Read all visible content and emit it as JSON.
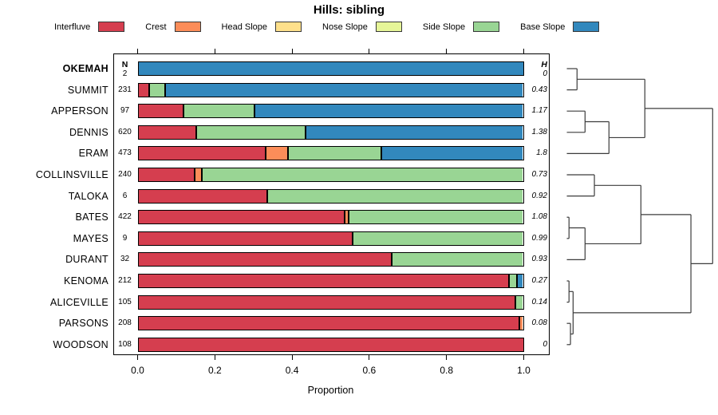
{
  "title": "Hills: sibling",
  "columns": {
    "n_header": "N",
    "h_header": "H"
  },
  "axis": {
    "xlabel": "Proportion",
    "tick_labels": [
      "0.0",
      "0.2",
      "0.4",
      "0.6",
      "0.8",
      "1.0"
    ],
    "tick_values": [
      0,
      0.2,
      0.4,
      0.6,
      0.8,
      1.0
    ],
    "xlim": [
      0,
      1
    ]
  },
  "legend": {
    "items": [
      {
        "key": "interfluve",
        "label": "Interfluve",
        "color": "#d53e4f"
      },
      {
        "key": "crest",
        "label": "Crest",
        "color": "#fc8d59"
      },
      {
        "key": "head_slope",
        "label": "Head Slope",
        "color": "#fee08b"
      },
      {
        "key": "nose_slope",
        "label": "Nose Slope",
        "color": "#e6f598"
      },
      {
        "key": "side_slope",
        "label": "Side Slope",
        "color": "#99d594"
      },
      {
        "key": "base_slope",
        "label": "Base Slope",
        "color": "#3288bd"
      }
    ]
  },
  "chart_data": {
    "type": "bar",
    "orientation": "horizontal-stacked",
    "title": "Hills: sibling",
    "xlabel": "Proportion",
    "xlim": [
      0,
      1
    ],
    "grid": false,
    "legend_position": "top",
    "categories": [
      "Interfluve",
      "Crest",
      "Head Slope",
      "Nose Slope",
      "Side Slope",
      "Base Slope"
    ],
    "colors": {
      "interfluve": "#d53e4f",
      "crest": "#fc8d59",
      "head_slope": "#fee08b",
      "nose_slope": "#e6f598",
      "side_slope": "#99d594",
      "base_slope": "#3288bd"
    },
    "rows": [
      {
        "name": "OKEMAH",
        "bold": true,
        "n": "2",
        "h": "0",
        "segments": [
          [
            "base_slope",
            1.0
          ]
        ]
      },
      {
        "name": "SUMMIT",
        "n": "231",
        "h": "0.43",
        "segments": [
          [
            "interfluve",
            0.026
          ],
          [
            "side_slope",
            0.042
          ],
          [
            "base_slope",
            0.932
          ]
        ]
      },
      {
        "name": "APPERSON",
        "n": "97",
        "h": "1.17",
        "segments": [
          [
            "interfluve",
            0.115
          ],
          [
            "side_slope",
            0.185
          ],
          [
            "base_slope",
            0.7
          ]
        ]
      },
      {
        "name": "DENNIS",
        "n": "620",
        "h": "1.38",
        "segments": [
          [
            "interfluve",
            0.148
          ],
          [
            "side_slope",
            0.285
          ],
          [
            "base_slope",
            0.567
          ]
        ]
      },
      {
        "name": "ERAM",
        "n": "473",
        "h": "1.8",
        "segments": [
          [
            "interfluve",
            0.328
          ],
          [
            "crest",
            0.058
          ],
          [
            "side_slope",
            0.243
          ],
          [
            "base_slope",
            0.371
          ]
        ]
      },
      {
        "name": "COLLINSVILLE",
        "n": "240",
        "h": "0.73",
        "segments": [
          [
            "interfluve",
            0.145
          ],
          [
            "crest",
            0.018
          ],
          [
            "side_slope",
            0.837
          ]
        ]
      },
      {
        "name": "TALOKA",
        "n": "6",
        "h": "0.92",
        "segments": [
          [
            "interfluve",
            0.333
          ],
          [
            "side_slope",
            0.667
          ]
        ]
      },
      {
        "name": "BATES",
        "n": "422",
        "h": "1.08",
        "segments": [
          [
            "interfluve",
            0.534
          ],
          [
            "crest",
            0.011
          ],
          [
            "side_slope",
            0.455
          ]
        ]
      },
      {
        "name": "MAYES",
        "n": "9",
        "h": "0.99",
        "segments": [
          [
            "interfluve",
            0.555
          ],
          [
            "side_slope",
            0.445
          ]
        ]
      },
      {
        "name": "DURANT",
        "n": "32",
        "h": "0.93",
        "segments": [
          [
            "interfluve",
            0.656
          ],
          [
            "side_slope",
            0.344
          ]
        ]
      },
      {
        "name": "KENOMA",
        "n": "212",
        "h": "0.27",
        "segments": [
          [
            "interfluve",
            0.961
          ],
          [
            "side_slope",
            0.021
          ],
          [
            "base_slope",
            0.018
          ]
        ]
      },
      {
        "name": "ALICEVILLE",
        "n": "105",
        "h": "0.14",
        "segments": [
          [
            "interfluve",
            0.979
          ],
          [
            "side_slope",
            0.021
          ]
        ]
      },
      {
        "name": "PARSONS",
        "n": "208",
        "h": "0.08",
        "segments": [
          [
            "interfluve",
            0.989
          ],
          [
            "crest",
            0.011
          ]
        ]
      },
      {
        "name": "WOODSON",
        "n": "108",
        "h": "0",
        "segments": [
          [
            "interfluve",
            1.0
          ]
        ]
      }
    ]
  },
  "dendrogram": {
    "merges": [
      {
        "a": "OKEMAH",
        "b": "SUMMIT",
        "h": 0.07
      },
      {
        "a": "APPERSON",
        "b": "DENNIS",
        "h": 0.125
      },
      {
        "a": "#1",
        "b": "ERAM",
        "h": 0.289
      },
      {
        "a": "#0",
        "b": "#2",
        "h": 0.535
      },
      {
        "a": "COLLINSVILLE",
        "b": "TALOKA",
        "h": 0.189
      },
      {
        "a": "BATES",
        "b": "MAYES",
        "h": 0.015
      },
      {
        "a": "#5",
        "b": "DURANT",
        "h": 0.125
      },
      {
        "a": "#4",
        "b": "#6",
        "h": 0.508
      },
      {
        "a": "KENOMA",
        "b": "ALICEVILLE",
        "h": 0.015
      },
      {
        "a": "PARSONS",
        "b": "WOODSON",
        "h": 0.025
      },
      {
        "a": "#8",
        "b": "#9",
        "h": 0.043
      },
      {
        "a": "#7",
        "b": "#10",
        "h": 0.851
      },
      {
        "a": "#3",
        "b": "#11",
        "h": 1.0
      }
    ]
  }
}
